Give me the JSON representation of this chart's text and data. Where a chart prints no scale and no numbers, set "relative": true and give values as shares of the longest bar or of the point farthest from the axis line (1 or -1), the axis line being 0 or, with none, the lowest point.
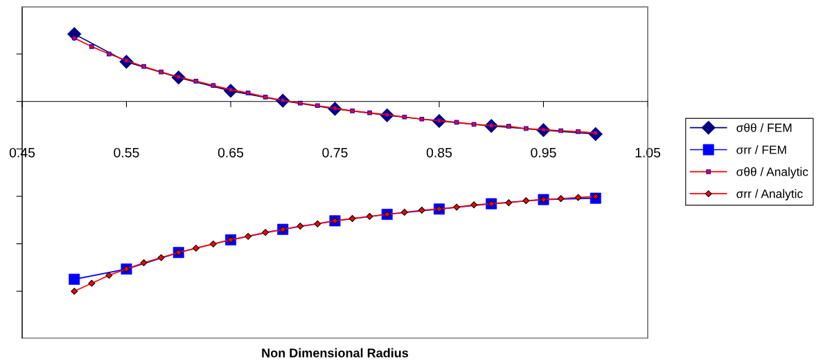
{
  "chart_data": {
    "type": "line",
    "xlabel": "Non Dimensional Radius",
    "relative": true,
    "xlim": [
      0.45,
      1.05
    ],
    "xticks": [
      0.45,
      0.55,
      0.65,
      0.75,
      0.85,
      0.95,
      1.05
    ],
    "grid": false,
    "legend": "right",
    "series": [
      {
        "name": "σθθ / FEM",
        "color": "#000080",
        "marker": "diamond",
        "x": [
          0.5,
          0.55,
          0.6,
          0.65,
          0.7,
          0.75,
          0.8,
          0.85,
          0.9,
          0.95,
          1.0
        ],
        "values": [
          0.355,
          0.209,
          0.126,
          0.056,
          0.004,
          -0.039,
          -0.073,
          -0.103,
          -0.129,
          -0.151,
          -0.172
        ]
      },
      {
        "name": "σrr / FEM",
        "color": "#0000ff",
        "marker": "square",
        "x": [
          0.5,
          0.55,
          0.6,
          0.65,
          0.7,
          0.75,
          0.8,
          0.85,
          0.9,
          0.95,
          1.0
        ],
        "values": [
          -0.937,
          -0.883,
          -0.796,
          -0.729,
          -0.674,
          -0.629,
          -0.595,
          -0.567,
          -0.539,
          -0.517,
          -0.51
        ]
      },
      {
        "name": "σθθ / Analytic",
        "color": "#ff0000",
        "marker": "square",
        "x": [
          0.5,
          0.5167,
          0.5333,
          0.55,
          0.5667,
          0.5833,
          0.6,
          0.6167,
          0.6333,
          0.65,
          0.6667,
          0.6833,
          0.7,
          0.7167,
          0.7333,
          0.75,
          0.7667,
          0.7833,
          0.8,
          0.8167,
          0.8333,
          0.85,
          0.8667,
          0.8833,
          0.9,
          0.9167,
          0.9333,
          0.95,
          0.9667,
          0.9833,
          1.0
        ],
        "values": [
          0.334,
          0.289,
          0.25,
          0.216,
          0.184,
          0.155,
          0.129,
          0.107,
          0.084,
          0.062,
          0.045,
          0.023,
          0.006,
          -0.009,
          -0.022,
          -0.036,
          -0.05,
          -0.06,
          -0.07,
          -0.082,
          -0.093,
          -0.101,
          -0.11,
          -0.121,
          -0.127,
          -0.131,
          -0.143,
          -0.149,
          -0.154,
          -0.159,
          -0.166
        ]
      },
      {
        "name": "σrr / Analytic",
        "color": "#ff0000",
        "marker": "diamond",
        "x": [
          0.5,
          0.5167,
          0.5333,
          0.55,
          0.5667,
          0.5833,
          0.6,
          0.6167,
          0.6333,
          0.65,
          0.6667,
          0.6833,
          0.7,
          0.7167,
          0.7333,
          0.75,
          0.7667,
          0.7833,
          0.8,
          0.8167,
          0.8333,
          0.85,
          0.8667,
          0.8833,
          0.9,
          0.9167,
          0.9333,
          0.95,
          0.9667,
          0.9833,
          1.0
        ],
        "values": [
          -1.0,
          -0.958,
          -0.916,
          -0.883,
          -0.85,
          -0.823,
          -0.796,
          -0.773,
          -0.751,
          -0.729,
          -0.711,
          -0.69,
          -0.674,
          -0.657,
          -0.645,
          -0.629,
          -0.617,
          -0.606,
          -0.595,
          -0.584,
          -0.573,
          -0.567,
          -0.557,
          -0.545,
          -0.539,
          -0.534,
          -0.523,
          -0.517,
          -0.512,
          -0.506,
          -0.501
        ]
      }
    ]
  }
}
